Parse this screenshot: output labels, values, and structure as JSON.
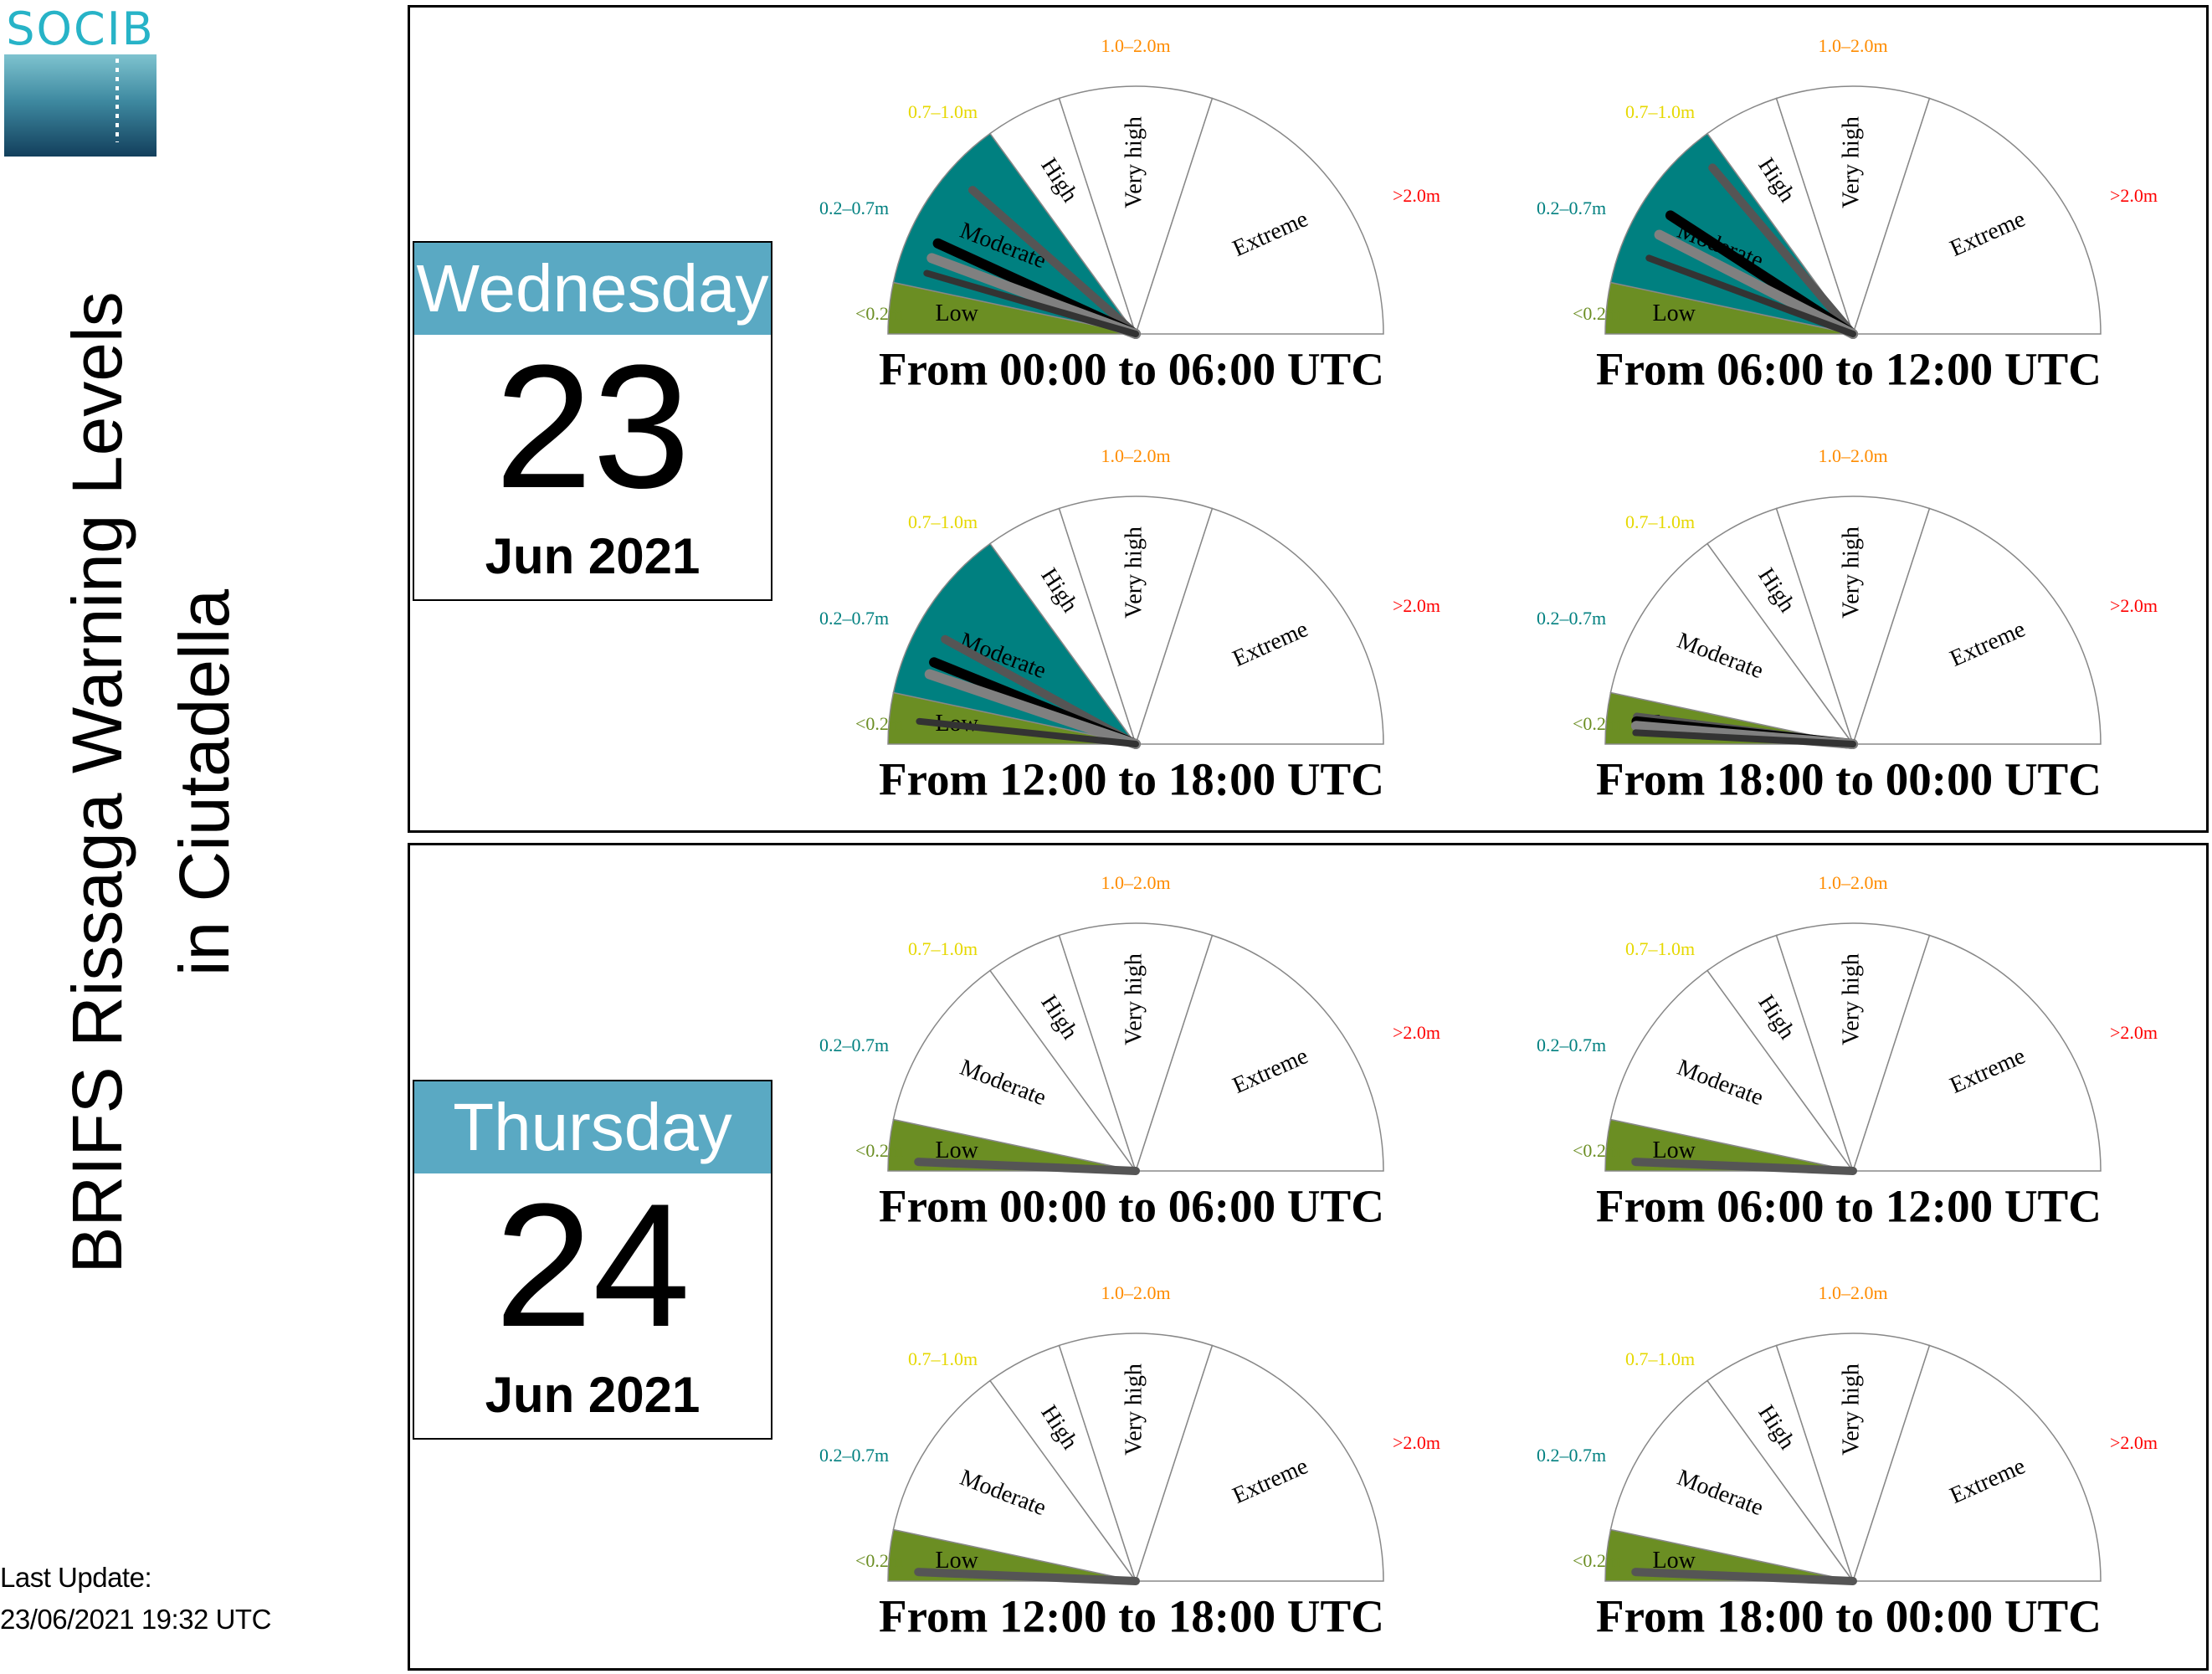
{
  "logo": {
    "text": "SOCIB"
  },
  "title": {
    "line1": "BRIFS Rissaga Warning Levels",
    "line2": "in Ciutadella"
  },
  "last_update": {
    "label": "Last Update:",
    "value": "23/06/2021 19:32 UTC"
  },
  "colors": {
    "low": "#6b8e23",
    "moderate": "#008080",
    "sector_border": "#888888",
    "label_low": "#6b8e23",
    "label_moderate": "#008080",
    "label_high": "#e6d800",
    "label_very_high": "#ff8c00",
    "label_extreme": "#ff0000",
    "calendar_header": "#5aa9c3"
  },
  "scale": {
    "levels": [
      "Low",
      "Moderate",
      "High",
      "Very high",
      "Extreme"
    ],
    "thresholds": [
      "<0.2m",
      "0.2–0.7m",
      "0.7–1.0m",
      "1.0–2.0m",
      ">2.0m"
    ]
  },
  "days": [
    {
      "weekday": "Wednesday",
      "day": "23",
      "month_year": "Jun 2021",
      "periods": [
        {
          "label": "From 00:00 to 06:00 UTC",
          "active_level": 1,
          "ensemble_heights_m": [
            0.55,
            0.35,
            0.3,
            0.25
          ]
        },
        {
          "label": "From 06:00 to 12:00 UTC",
          "active_level": 1,
          "ensemble_heights_m": [
            0.65,
            0.45,
            0.38,
            0.3
          ]
        },
        {
          "label": "From 12:00 to 18:00 UTC",
          "active_level": 1,
          "ensemble_heights_m": [
            0.4,
            0.32,
            0.28,
            0.1
          ]
        },
        {
          "label": "From 18:00 to 00:00 UTC",
          "active_level": 0,
          "ensemble_heights_m": [
            0.12,
            0.1,
            0.08,
            0.05
          ]
        }
      ]
    },
    {
      "weekday": "Thursday",
      "day": "24",
      "month_year": "Jun 2021",
      "periods": [
        {
          "label": "From 00:00 to 06:00 UTC",
          "active_level": 0,
          "ensemble_heights_m": [
            0.04
          ]
        },
        {
          "label": "From 06:00 to 12:00 UTC",
          "active_level": 0,
          "ensemble_heights_m": [
            0.04
          ]
        },
        {
          "label": "From 12:00 to 18:00 UTC",
          "active_level": 0,
          "ensemble_heights_m": [
            0.04
          ]
        },
        {
          "label": "From 18:00 to 00:00 UTC",
          "active_level": 0,
          "ensemble_heights_m": [
            0.04
          ]
        }
      ]
    }
  ],
  "chart_data": {
    "type": "gauge",
    "series": [
      {
        "name": "Wednesday 23 Jun 2021",
        "categories": [
          "From 00:00 to 06:00 UTC",
          "From 06:00 to 12:00 UTC",
          "From 12:00 to 18:00 UTC",
          "From 18:00 to 00:00 UTC"
        ],
        "values": [
          "Moderate",
          "Moderate",
          "Moderate",
          "Low"
        ]
      },
      {
        "name": "Thursday 24 Jun 2021",
        "categories": [
          "From 00:00 to 06:00 UTC",
          "From 06:00 to 12:00 UTC",
          "From 12:00 to 18:00 UTC",
          "From 18:00 to 00:00 UTC"
        ],
        "values": [
          "Low",
          "Low",
          "Low",
          "Low"
        ]
      }
    ]
  }
}
